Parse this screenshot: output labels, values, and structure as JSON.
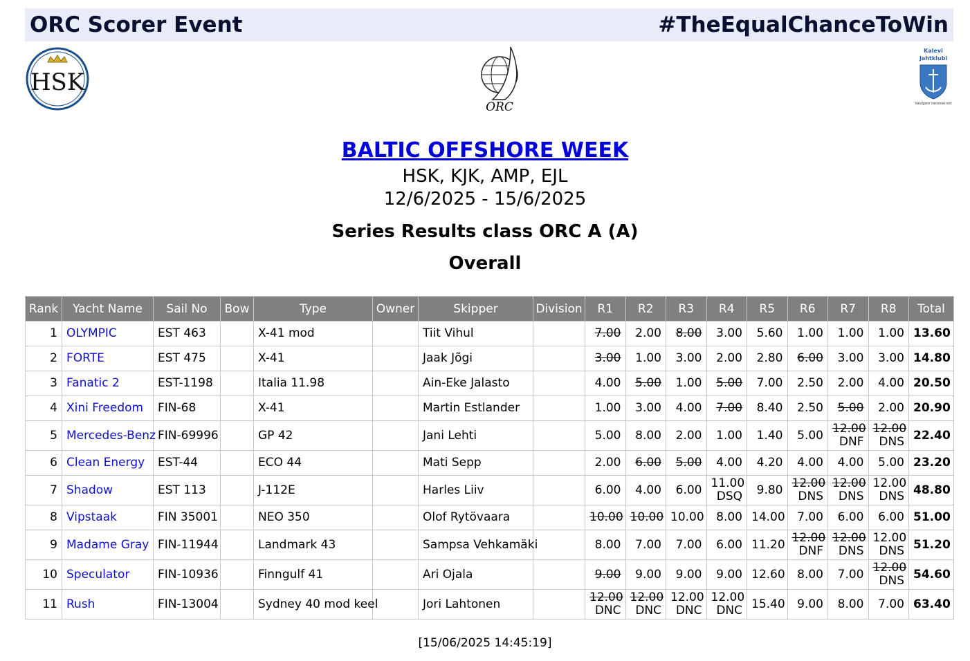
{
  "header": {
    "title": "ORC Scorer Event",
    "tagline": "#TheEqualChanceToWin"
  },
  "logos": {
    "left": "HSK",
    "center": "ORC",
    "right": [
      "Kalevi",
      "Jahtklubi",
      "navigare necesse est"
    ]
  },
  "event": {
    "name": "BALTIC OFFSHORE WEEK",
    "clubs": "HSK, KJK, AMP, EJL",
    "dates": "12/6/2025 - 15/6/2025"
  },
  "subtitle": "Series Results class ORC A (A)",
  "section": "Overall",
  "table": {
    "columns": [
      "Rank",
      "Yacht Name",
      "Sail No",
      "Bow",
      "Type",
      "Owner",
      "Skipper",
      "Division",
      "R1",
      "R2",
      "R3",
      "R4",
      "R5",
      "R6",
      "R7",
      "R8",
      "Total"
    ],
    "rows": [
      {
        "rank": "1",
        "yacht": "OLYMPIC",
        "sail": "EST 463",
        "type": "X-41 mod",
        "skipper": "Tiit Vihul",
        "races": [
          {
            "score": "7.00",
            "discarded": true
          },
          {
            "score": "2.00"
          },
          {
            "score": "8.00",
            "discarded": true
          },
          {
            "score": "3.00"
          },
          {
            "score": "5.60"
          },
          {
            "score": "1.00"
          },
          {
            "score": "1.00"
          },
          {
            "score": "1.00"
          }
        ],
        "total": "13.60"
      },
      {
        "rank": "2",
        "yacht": "FORTE",
        "sail": "EST 475",
        "type": "X-41",
        "skipper": "Jaak Jõgi",
        "races": [
          {
            "score": "3.00",
            "discarded": true
          },
          {
            "score": "1.00"
          },
          {
            "score": "3.00"
          },
          {
            "score": "2.00"
          },
          {
            "score": "2.80"
          },
          {
            "score": "6.00",
            "discarded": true
          },
          {
            "score": "3.00"
          },
          {
            "score": "3.00"
          }
        ],
        "total": "14.80"
      },
      {
        "rank": "3",
        "yacht": "Fanatic 2",
        "sail": "EST-1198",
        "type": "Italia 11.98",
        "skipper": "Ain-Eke Jalasto",
        "races": [
          {
            "score": "4.00"
          },
          {
            "score": "5.00",
            "discarded": true
          },
          {
            "score": "1.00"
          },
          {
            "score": "5.00",
            "discarded": true
          },
          {
            "score": "7.00"
          },
          {
            "score": "2.50"
          },
          {
            "score": "2.00"
          },
          {
            "score": "4.00"
          }
        ],
        "total": "20.50"
      },
      {
        "rank": "4",
        "yacht": "Xini Freedom",
        "sail": "FIN-68",
        "type": "X-41",
        "skipper": "Martin Estlander",
        "races": [
          {
            "score": "1.00"
          },
          {
            "score": "3.00"
          },
          {
            "score": "4.00"
          },
          {
            "score": "7.00",
            "discarded": true
          },
          {
            "score": "8.40"
          },
          {
            "score": "2.50"
          },
          {
            "score": "5.00",
            "discarded": true
          },
          {
            "score": "2.00"
          }
        ],
        "total": "20.90"
      },
      {
        "rank": "5",
        "yacht": "Mercedes-Benz",
        "sail": "FIN-69996",
        "type": "GP 42",
        "skipper": "Jani Lehti",
        "races": [
          {
            "score": "5.00"
          },
          {
            "score": "8.00"
          },
          {
            "score": "2.00"
          },
          {
            "score": "1.00"
          },
          {
            "score": "1.40"
          },
          {
            "score": "5.00"
          },
          {
            "score": "12.00",
            "discarded": true,
            "code": "DNF"
          },
          {
            "score": "12.00",
            "discarded": true,
            "code": "DNS"
          }
        ],
        "total": "22.40"
      },
      {
        "rank": "6",
        "yacht": "Clean Energy",
        "sail": "EST-44",
        "type": "ECO 44",
        "skipper": "Mati Sepp",
        "races": [
          {
            "score": "2.00"
          },
          {
            "score": "6.00",
            "discarded": true
          },
          {
            "score": "5.00",
            "discarded": true
          },
          {
            "score": "4.00"
          },
          {
            "score": "4.20"
          },
          {
            "score": "4.00"
          },
          {
            "score": "4.00"
          },
          {
            "score": "5.00"
          }
        ],
        "total": "23.20"
      },
      {
        "rank": "7",
        "yacht": "Shadow",
        "sail": "EST 113",
        "type": "J-112E",
        "skipper": "Harles Liiv",
        "races": [
          {
            "score": "6.00"
          },
          {
            "score": "4.00"
          },
          {
            "score": "6.00"
          },
          {
            "score": "11.00",
            "code": "DSQ"
          },
          {
            "score": "9.80"
          },
          {
            "score": "12.00",
            "discarded": true,
            "code": "DNS"
          },
          {
            "score": "12.00",
            "discarded": true,
            "code": "DNS"
          },
          {
            "score": "12.00",
            "code": "DNS"
          }
        ],
        "total": "48.80"
      },
      {
        "rank": "8",
        "yacht": "Vipstaak",
        "sail": "FIN 35001",
        "type": "NEO 350",
        "skipper": "Olof Rytövaara",
        "races": [
          {
            "score": "10.00",
            "discarded": true
          },
          {
            "score": "10.00",
            "discarded": true
          },
          {
            "score": "10.00"
          },
          {
            "score": "8.00"
          },
          {
            "score": "14.00"
          },
          {
            "score": "7.00"
          },
          {
            "score": "6.00"
          },
          {
            "score": "6.00"
          }
        ],
        "total": "51.00"
      },
      {
        "rank": "9",
        "yacht": "Madame Gray",
        "sail": "FIN-11944",
        "type": "Landmark 43",
        "skipper": "Sampsa Vehkamäki",
        "races": [
          {
            "score": "8.00"
          },
          {
            "score": "7.00"
          },
          {
            "score": "7.00"
          },
          {
            "score": "6.00"
          },
          {
            "score": "11.20"
          },
          {
            "score": "12.00",
            "discarded": true,
            "code": "DNF"
          },
          {
            "score": "12.00",
            "discarded": true,
            "code": "DNS"
          },
          {
            "score": "12.00",
            "code": "DNS"
          }
        ],
        "total": "51.20"
      },
      {
        "rank": "10",
        "yacht": "Speculator",
        "sail": "FIN-10936",
        "type": "Finngulf 41",
        "skipper": "Ari Ojala",
        "races": [
          {
            "score": "9.00",
            "discarded": true
          },
          {
            "score": "9.00"
          },
          {
            "score": "9.00"
          },
          {
            "score": "9.00"
          },
          {
            "score": "12.60"
          },
          {
            "score": "8.00"
          },
          {
            "score": "7.00"
          },
          {
            "score": "12.00",
            "discarded": true,
            "code": "DNS"
          }
        ],
        "total": "54.60"
      },
      {
        "rank": "11",
        "yacht": "Rush",
        "sail": "FIN-13004",
        "type": "Sydney 40 mod keel",
        "skipper": "Jori Lahtonen",
        "races": [
          {
            "score": "12.00",
            "discarded": true,
            "code": "DNC"
          },
          {
            "score": "12.00",
            "discarded": true,
            "code": "DNC"
          },
          {
            "score": "12.00",
            "code": "DNC"
          },
          {
            "score": "12.00",
            "code": "DNC"
          },
          {
            "score": "15.40"
          },
          {
            "score": "9.00"
          },
          {
            "score": "8.00"
          },
          {
            "score": "7.00"
          }
        ],
        "total": "63.40"
      }
    ]
  },
  "timestamp": "[15/06/2025 14:45:19]"
}
